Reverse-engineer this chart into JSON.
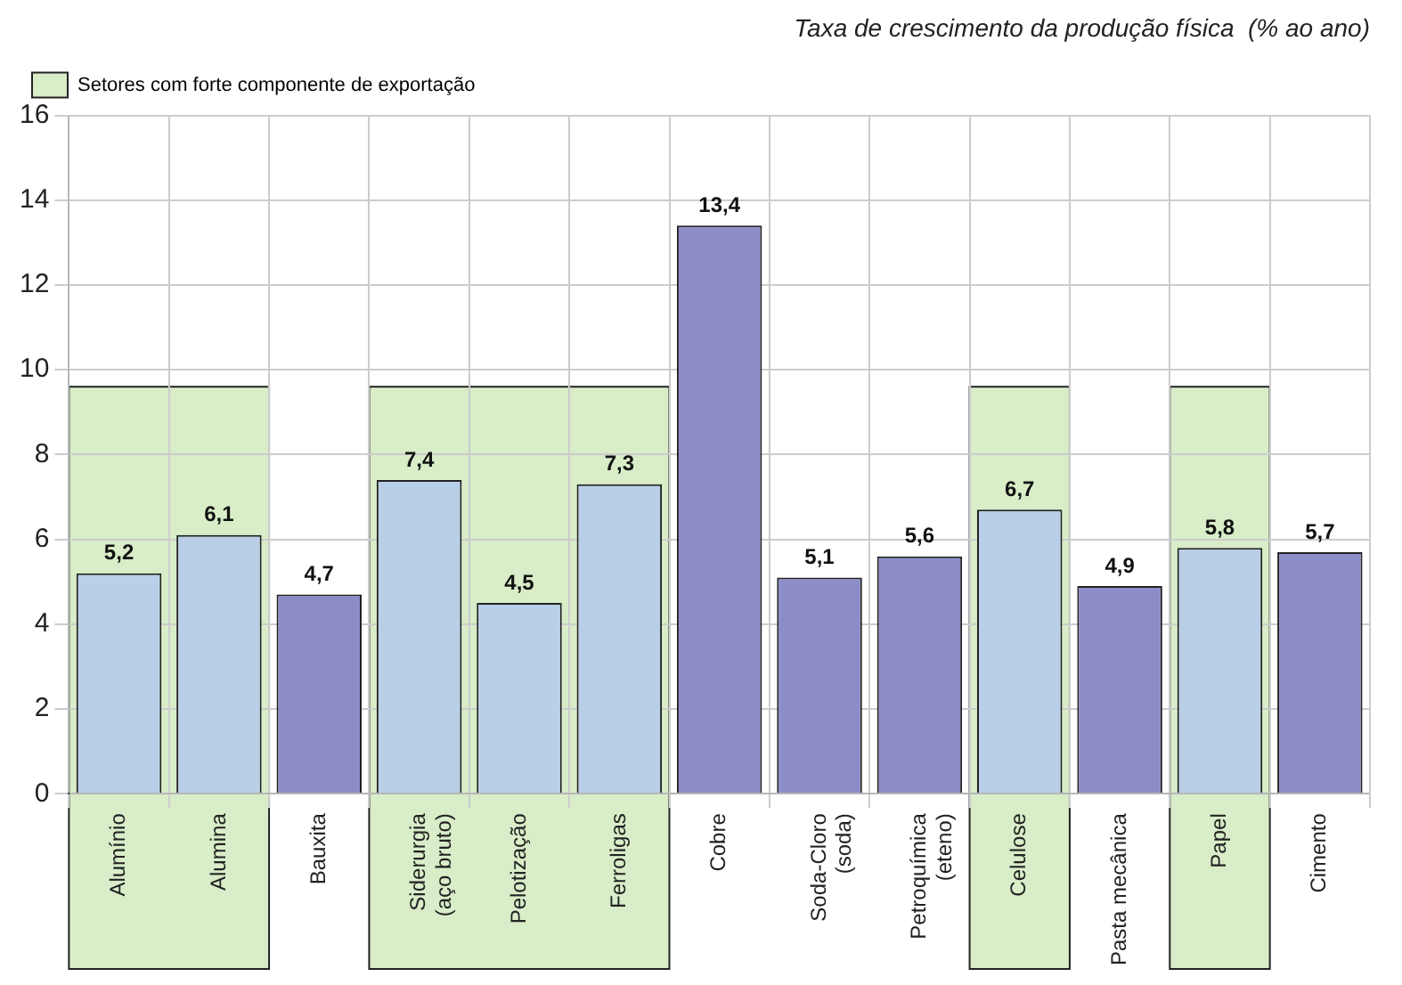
{
  "chart_data": {
    "type": "bar",
    "title": "Taxa de crescimento da produção física  (% ao ano)",
    "categories": [
      "Alumínio",
      "Alumina",
      "Bauxita",
      "Siderurgia (aço bruto)",
      "Pelotização",
      "Ferroligas",
      "Cobre",
      "Soda-Cloro (soda)",
      "Petroquímica (eteno)",
      "Celulose",
      "Pasta mecânica",
      "Papel",
      "Cimento"
    ],
    "values": [
      5.2,
      6.1,
      4.7,
      7.4,
      4.5,
      7.3,
      13.4,
      5.1,
      5.6,
      6.7,
      4.9,
      5.8,
      5.7
    ],
    "colors": [
      "#b9cfe8",
      "#b9cfe8",
      "#8c8cc8",
      "#b9cfe8",
      "#b9cfe8",
      "#b9cfe8",
      "#8c8cc8",
      "#8c8cc8",
      "#8c8cc8",
      "#b9cfe8",
      "#8c8cc8",
      "#b9cfe8",
      "#8c8cc8"
    ],
    "value_labels": [
      "5,2",
      "6,1",
      "4,7",
      "7,4",
      "4,5",
      "7,3",
      "13,4",
      "5,1",
      "5,6",
      "6,7",
      "4,9",
      "5,8",
      "5,7"
    ],
    "legend": "top left",
    "ylim": [
      0,
      16
    ],
    "yticks": [
      0,
      2,
      4,
      6,
      8,
      10,
      12,
      14,
      16
    ],
    "grid": true,
    "bands": [
      {
        "axis": "x",
        "from": "Alumínio",
        "to": "Alumina",
        "label": "Setores com forte componente de exportação",
        "color": "#d8edc8"
      },
      {
        "axis": "x",
        "from": "Siderurgia (aço bruto)",
        "to": "Ferroligas",
        "color": "#d8edc8"
      },
      {
        "axis": "x",
        "from": "Celulose",
        "to": "Celulose",
        "color": "#d8edc8"
      },
      {
        "axis": "x",
        "from": "Papel",
        "to": "Papel",
        "color": "#d8edc8"
      }
    ]
  }
}
